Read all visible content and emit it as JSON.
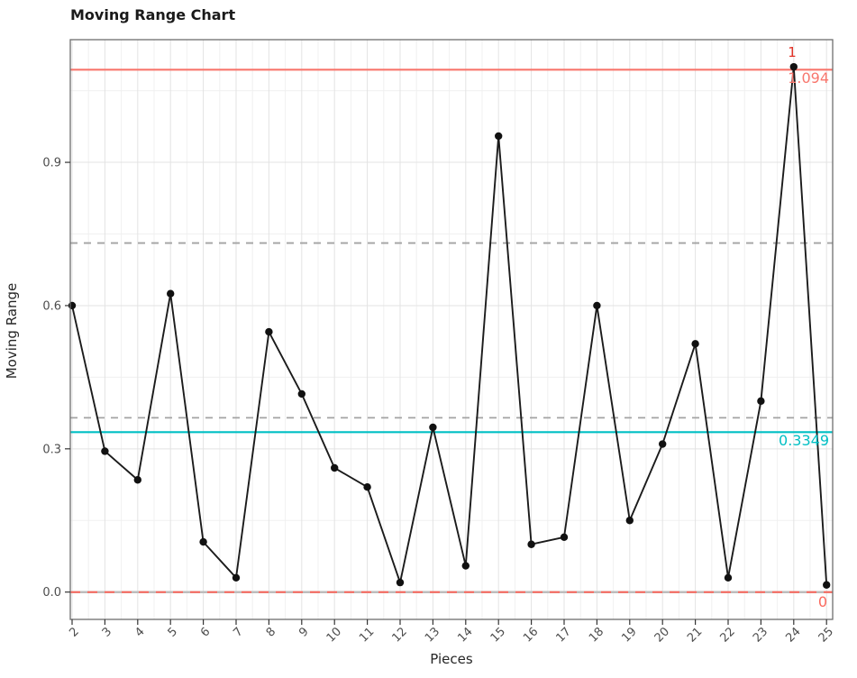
{
  "window": {
    "title": "Moving Range Chart"
  },
  "chart_data": {
    "type": "line",
    "title": "Moving Range Chart",
    "xlabel": "Pieces",
    "ylabel": "Moving Range",
    "series_name": "Moving Range",
    "x": [
      2,
      3,
      4,
      5,
      6,
      7,
      8,
      9,
      10,
      11,
      12,
      13,
      14,
      15,
      16,
      17,
      18,
      19,
      20,
      21,
      22,
      23,
      24,
      25
    ],
    "values": [
      0.6,
      0.295,
      0.235,
      0.625,
      0.105,
      0.03,
      0.545,
      0.415,
      0.26,
      0.22,
      0.02,
      0.345,
      0.055,
      0.955,
      0.1,
      0.115,
      0.6,
      0.15,
      0.31,
      0.52,
      0.03,
      0.4,
      1.1,
      0.015
    ],
    "x_ticks": [
      2,
      3,
      4,
      5,
      6,
      7,
      8,
      9,
      10,
      11,
      12,
      13,
      14,
      15,
      16,
      17,
      18,
      19,
      20,
      21,
      22,
      23,
      24,
      25
    ],
    "y_ticks": [
      0.0,
      0.3,
      0.6,
      0.9
    ],
    "ylim": [
      -0.057,
      1.157
    ],
    "grid": true,
    "legend": false,
    "control_lines": {
      "ucl": {
        "value": 1.094,
        "label": "1.094",
        "style": "solid",
        "color": "#F8766D"
      },
      "center": {
        "value": 0.3349,
        "label": "0.3349",
        "style": "solid",
        "color": "#00BFC4"
      },
      "lcl": {
        "value": 0,
        "label": "0",
        "style": "dashed",
        "color": "#FB695E"
      },
      "zone_dashed": [
        {
          "value": 0.365
        },
        {
          "value": 0.731
        }
      ]
    },
    "violations": [
      {
        "x": 24,
        "value": 1.1,
        "label": "1",
        "rule": "beyond control limit"
      }
    ]
  },
  "colors": {
    "ucl": "#F8766D",
    "center": "#00BFC4",
    "lcl_dash": "#FB695E",
    "lcl_base": "#BDBDBD",
    "zone_dash": "#A3A3A3",
    "series": "#1B1B1B",
    "violation_label": "#E23227",
    "grid_major": "#E3E3E3",
    "grid_minor": "#F0F0F0",
    "panel_border": "#6E6E6E",
    "tick": "#333333",
    "tick_label": "#4D4D4D"
  }
}
